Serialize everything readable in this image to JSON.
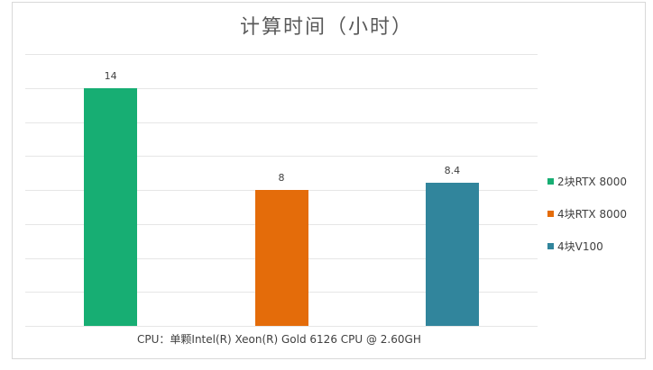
{
  "chart_data": {
    "type": "bar",
    "title": "计算时间（小时）",
    "categories": [
      "2块RTX 8000",
      "4块RTX 8000",
      "4块V100"
    ],
    "series": [
      {
        "name": "2块RTX 8000",
        "color": "#17ae73",
        "values": [
          14
        ]
      },
      {
        "name": "4块RTX 8000",
        "color": "#e46c0a",
        "values": [
          8
        ]
      },
      {
        "name": "4块V100",
        "color": "#31859c",
        "values": [
          8.4
        ]
      }
    ],
    "values": [
      14,
      8,
      8.4
    ],
    "data_labels": [
      "14",
      "8",
      "8.4"
    ],
    "xlabel": "CPU：单颗Intel(R) Xeon(R) Gold 6126 CPU @ 2.60GH",
    "ylabel": "",
    "ylim": [
      0,
      16
    ],
    "grid": true,
    "gridline_step": 2,
    "legend_position": "right",
    "y_tick_labels_visible": false
  },
  "legend": [
    {
      "label": "2块RTX 8000",
      "color": "#17ae73"
    },
    {
      "label": "4块RTX 8000",
      "color": "#e46c0a"
    },
    {
      "label": "4块V100",
      "color": "#31859c"
    }
  ],
  "footer": "CPU：单颗Intel(R) Xeon(R) Gold 6126 CPU @ 2.60GH"
}
